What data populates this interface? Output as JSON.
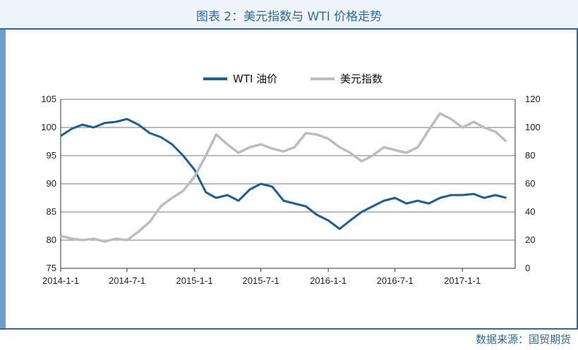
{
  "title": "图表 2：美元指数与 WTI 价格走势",
  "source": "数据来源：国贸期货",
  "colors": {
    "wti": "#1d5f95",
    "usd": "#bdbdbd",
    "accent": "#2c6aa0"
  },
  "chart_data": {
    "type": "line",
    "grid": true,
    "legend_position": "top-center",
    "xlabel": "",
    "ylabel_left": "",
    "ylabel_right": "",
    "x_ticks": [
      "2014-1-1",
      "2014-7-1",
      "2015-1-1",
      "2015-7-1",
      "2016-1-1",
      "2016-7-1",
      "2017-1-1"
    ],
    "y_left": {
      "ticks": [
        "75",
        "80",
        "85",
        "90",
        "95",
        "100",
        "105"
      ],
      "lim": [
        75,
        105
      ]
    },
    "y_right": {
      "ticks": [
        "0",
        "20",
        "40",
        "60",
        "80",
        "100",
        "120"
      ],
      "lim": [
        0,
        120
      ]
    },
    "series": [
      {
        "name": "WTI 油价",
        "axis": "left",
        "color": "#1d5f95",
        "x": [
          "2014-01-01",
          "2014-02-01",
          "2014-03-01",
          "2014-04-01",
          "2014-05-01",
          "2014-06-01",
          "2014-07-01",
          "2014-08-01",
          "2014-09-01",
          "2014-10-01",
          "2014-11-01",
          "2014-12-01",
          "2015-01-01",
          "2015-02-01",
          "2015-03-01",
          "2015-04-01",
          "2015-05-01",
          "2015-06-01",
          "2015-07-01",
          "2015-08-01",
          "2015-09-01",
          "2015-10-01",
          "2015-11-01",
          "2015-12-01",
          "2016-01-01",
          "2016-02-01",
          "2016-03-01",
          "2016-04-01",
          "2016-05-01",
          "2016-06-01",
          "2016-07-01",
          "2016-08-01",
          "2016-09-01",
          "2016-10-01",
          "2016-11-01",
          "2016-12-01",
          "2017-01-01",
          "2017-02-01",
          "2017-03-01",
          "2017-04-01",
          "2017-05-01"
        ],
        "values": [
          98.5,
          99.8,
          100.5,
          100.0,
          100.8,
          101.0,
          101.5,
          100.5,
          99.0,
          98.3,
          97.0,
          95.0,
          92.5,
          88.5,
          87.5,
          88.0,
          87.0,
          89.0,
          90.0,
          89.5,
          87.0,
          86.5,
          86.0,
          84.5,
          83.5,
          82.0,
          83.5,
          85.0,
          86.0,
          87.0,
          87.5,
          86.5,
          87.0,
          86.5,
          87.5,
          88.0,
          88.0,
          88.2,
          87.5,
          88.0,
          87.5
        ]
      },
      {
        "name": "美元指数",
        "axis": "right",
        "color": "#bdbdbd",
        "x": [
          "2014-01-01",
          "2014-02-01",
          "2014-03-01",
          "2014-04-01",
          "2014-05-01",
          "2014-06-01",
          "2014-07-01",
          "2014-08-01",
          "2014-09-01",
          "2014-10-01",
          "2014-11-01",
          "2014-12-01",
          "2015-01-01",
          "2015-02-01",
          "2015-03-01",
          "2015-04-01",
          "2015-05-01",
          "2015-06-01",
          "2015-07-01",
          "2015-08-01",
          "2015-09-01",
          "2015-10-01",
          "2015-11-01",
          "2015-12-01",
          "2016-01-01",
          "2016-02-01",
          "2016-03-01",
          "2016-04-01",
          "2016-05-01",
          "2016-06-01",
          "2016-07-01",
          "2016-08-01",
          "2016-09-01",
          "2016-10-01",
          "2016-11-01",
          "2016-12-01",
          "2017-01-01",
          "2017-02-01",
          "2017-03-01",
          "2017-04-01",
          "2017-05-01"
        ],
        "values": [
          23,
          21,
          20,
          21,
          19,
          21,
          20,
          26,
          33,
          44,
          50,
          55,
          65,
          80,
          95,
          88,
          82,
          86,
          88,
          85,
          83,
          86,
          96,
          95,
          92,
          86,
          82,
          76,
          80,
          86,
          84,
          82,
          86,
          98,
          110,
          106,
          100,
          104,
          100,
          97,
          90
        ]
      }
    ]
  }
}
